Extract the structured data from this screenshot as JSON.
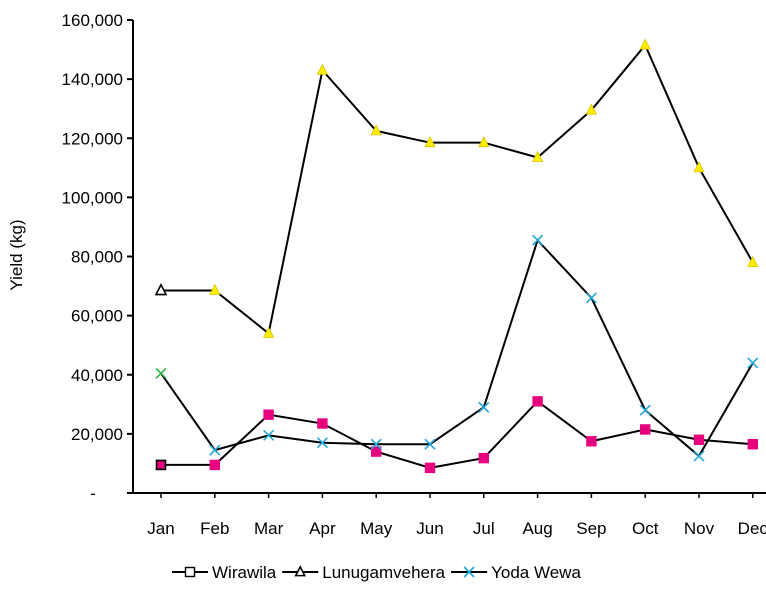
{
  "chart_data": {
    "type": "line",
    "title": "",
    "xlabel": "",
    "ylabel": "Yield (kg)",
    "categories": [
      "Jan",
      "Feb",
      "Mar",
      "Apr",
      "May",
      "Jun",
      "Jul",
      "Aug",
      "Sep",
      "Oct",
      "Nov",
      "Dec"
    ],
    "ylim": [
      0,
      160000
    ],
    "y_ticks": [
      0,
      20000,
      40000,
      60000,
      80000,
      100000,
      120000,
      140000,
      160000
    ],
    "y_tick_labels": [
      "-",
      "20,000",
      "40,000",
      "60,000",
      "80,000",
      "100,000",
      "120,000",
      "140,000",
      "160,000"
    ],
    "grid": false,
    "legend_position": "bottom",
    "series": [
      {
        "name": "Wirawila",
        "marker": "square",
        "line_color": "#000000",
        "marker_color": "#e6007e",
        "values": [
          9500,
          9500,
          26500,
          23500,
          14000,
          8500,
          11800,
          31000,
          17500,
          21500,
          18000,
          16500
        ]
      },
      {
        "name": "Lunugamvehera",
        "marker": "triangle",
        "line_color": "#000000",
        "marker_color": "#ffee00",
        "values": [
          68500,
          68500,
          54000,
          143000,
          122500,
          118500,
          118500,
          113500,
          129500,
          151500,
          110000,
          78000
        ]
      },
      {
        "name": "Yoda Wewa",
        "marker": "x",
        "line_color": "#000000",
        "marker_color": "#21a8d8",
        "values": [
          40500,
          14500,
          19500,
          17000,
          16500,
          16500,
          29000,
          85500,
          66000,
          28000,
          12500,
          44000
        ]
      }
    ]
  }
}
